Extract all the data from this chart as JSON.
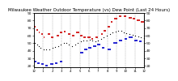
{
  "title": "Milwaukee Weather Outdoor Temperature (vs) Dew Point (Last 24 Hours)",
  "title_fontsize": 4.0,
  "background_color": "#ffffff",
  "grid_color": "#888888",
  "ylim": [
    18,
    90
  ],
  "xlim": [
    0,
    288
  ],
  "temp_segments": [
    {
      "x": [
        0,
        4
      ],
      "y": [
        72,
        72
      ]
    },
    {
      "x": [
        6,
        10
      ],
      "y": [
        68,
        68
      ]
    },
    {
      "x": [
        12,
        14
      ],
      "y": [
        64,
        64
      ]
    },
    {
      "x": [
        20,
        24
      ],
      "y": [
        62,
        62
      ]
    },
    {
      "x": [
        26,
        28
      ],
      "y": [
        58,
        58
      ]
    },
    {
      "x": [
        36,
        42
      ],
      "y": [
        62,
        62
      ]
    },
    {
      "x": [
        44,
        50
      ],
      "y": [
        58,
        58
      ]
    },
    {
      "x": [
        60,
        65
      ],
      "y": [
        60,
        60
      ]
    },
    {
      "x": [
        68,
        74
      ],
      "y": [
        64,
        64
      ]
    },
    {
      "x": [
        78,
        82
      ],
      "y": [
        65,
        65
      ]
    },
    {
      "x": [
        88,
        95
      ],
      "y": [
        62,
        62
      ]
    },
    {
      "x": [
        100,
        106
      ],
      "y": [
        60,
        60
      ]
    },
    {
      "x": [
        110,
        118
      ],
      "y": [
        64,
        64
      ]
    },
    {
      "x": [
        120,
        126
      ],
      "y": [
        60,
        60
      ]
    },
    {
      "x": [
        130,
        136
      ],
      "y": [
        58,
        58
      ]
    },
    {
      "x": [
        140,
        148
      ],
      "y": [
        58,
        58
      ]
    },
    {
      "x": [
        150,
        155
      ],
      "y": [
        56,
        56
      ]
    },
    {
      "x": [
        160,
        168
      ],
      "y": [
        58,
        58
      ]
    },
    {
      "x": [
        175,
        180
      ],
      "y": [
        62,
        62
      ]
    },
    {
      "x": [
        182,
        188
      ],
      "y": [
        66,
        66
      ]
    },
    {
      "x": [
        192,
        198
      ],
      "y": [
        72,
        72
      ]
    },
    {
      "x": [
        200,
        206
      ],
      "y": [
        78,
        78
      ]
    },
    {
      "x": [
        210,
        218
      ],
      "y": [
        82,
        82
      ]
    },
    {
      "x": [
        222,
        228
      ],
      "y": [
        86,
        86
      ]
    },
    {
      "x": [
        235,
        242
      ],
      "y": [
        86,
        86
      ]
    },
    {
      "x": [
        248,
        256
      ],
      "y": [
        84,
        84
      ]
    },
    {
      "x": [
        258,
        264
      ],
      "y": [
        82,
        82
      ]
    },
    {
      "x": [
        268,
        276
      ],
      "y": [
        80,
        80
      ]
    },
    {
      "x": [
        280,
        288
      ],
      "y": [
        78,
        78
      ]
    }
  ],
  "dew_segments": [
    {
      "x": [
        0,
        6
      ],
      "y": [
        26,
        26
      ]
    },
    {
      "x": [
        8,
        14
      ],
      "y": [
        24,
        24
      ]
    },
    {
      "x": [
        20,
        26
      ],
      "y": [
        22,
        22
      ]
    },
    {
      "x": [
        30,
        36
      ],
      "y": [
        20,
        20
      ]
    },
    {
      "x": [
        42,
        50
      ],
      "y": [
        22,
        22
      ]
    },
    {
      "x": [
        55,
        62
      ],
      "y": [
        24,
        24
      ]
    },
    {
      "x": [
        68,
        75
      ],
      "y": [
        26,
        26
      ]
    },
    {
      "x": [
        120,
        130
      ],
      "y": [
        38,
        38
      ]
    },
    {
      "x": [
        132,
        140
      ],
      "y": [
        42,
        42
      ]
    },
    {
      "x": [
        142,
        150
      ],
      "y": [
        44,
        44
      ]
    },
    {
      "x": [
        155,
        163
      ],
      "y": [
        46,
        46
      ]
    },
    {
      "x": [
        165,
        173
      ],
      "y": [
        48,
        48
      ]
    },
    {
      "x": [
        178,
        185
      ],
      "y": [
        44,
        44
      ]
    },
    {
      "x": [
        192,
        200
      ],
      "y": [
        42,
        42
      ]
    },
    {
      "x": [
        208,
        218
      ],
      "y": [
        50,
        50
      ]
    },
    {
      "x": [
        222,
        230
      ],
      "y": [
        54,
        54
      ]
    },
    {
      "x": [
        236,
        244
      ],
      "y": [
        56,
        56
      ]
    },
    {
      "x": [
        248,
        258
      ],
      "y": [
        58,
        58
      ]
    },
    {
      "x": [
        262,
        270
      ],
      "y": [
        54,
        54
      ]
    },
    {
      "x": [
        274,
        282
      ],
      "y": [
        52,
        52
      ]
    }
  ],
  "black_dots_x": [
    2,
    8,
    12,
    18,
    25,
    32,
    40,
    48,
    56,
    64,
    70,
    78,
    85,
    92,
    100,
    108,
    115,
    122,
    130,
    137,
    145,
    152,
    160,
    168,
    175,
    182,
    190,
    198,
    205,
    213,
    220,
    228,
    235,
    242,
    250,
    258,
    265,
    272,
    280,
    287
  ],
  "black_dots_y": [
    50,
    48,
    46,
    44,
    42,
    42,
    42,
    44,
    45,
    46,
    48,
    50,
    50,
    48,
    46,
    48,
    50,
    52,
    54,
    54,
    55,
    54,
    52,
    54,
    56,
    58,
    60,
    62,
    64,
    65,
    66,
    66,
    64,
    63,
    62,
    61,
    60,
    59,
    58,
    57
  ],
  "temp_color": "#cc0000",
  "dew_color": "#0000cc",
  "black_color": "#000000",
  "linewidth": 1.2,
  "markersize": 1.8,
  "vgrid_positions": [
    0,
    24,
    48,
    72,
    96,
    120,
    144,
    168,
    192,
    216,
    240,
    264,
    288
  ],
  "xtick_labels": [
    "12",
    "1",
    "2",
    "3",
    "4",
    "5",
    "6",
    "7",
    "8",
    "9",
    "10",
    "11",
    "12"
  ],
  "ytick_positions": [
    20,
    30,
    40,
    50,
    60,
    70,
    80,
    90
  ],
  "ytick_labels": [
    "20",
    "30",
    "40",
    "50",
    "60",
    "70",
    "80",
    "90"
  ],
  "ytick_fontsize": 3.2,
  "xtick_fontsize": 2.8
}
